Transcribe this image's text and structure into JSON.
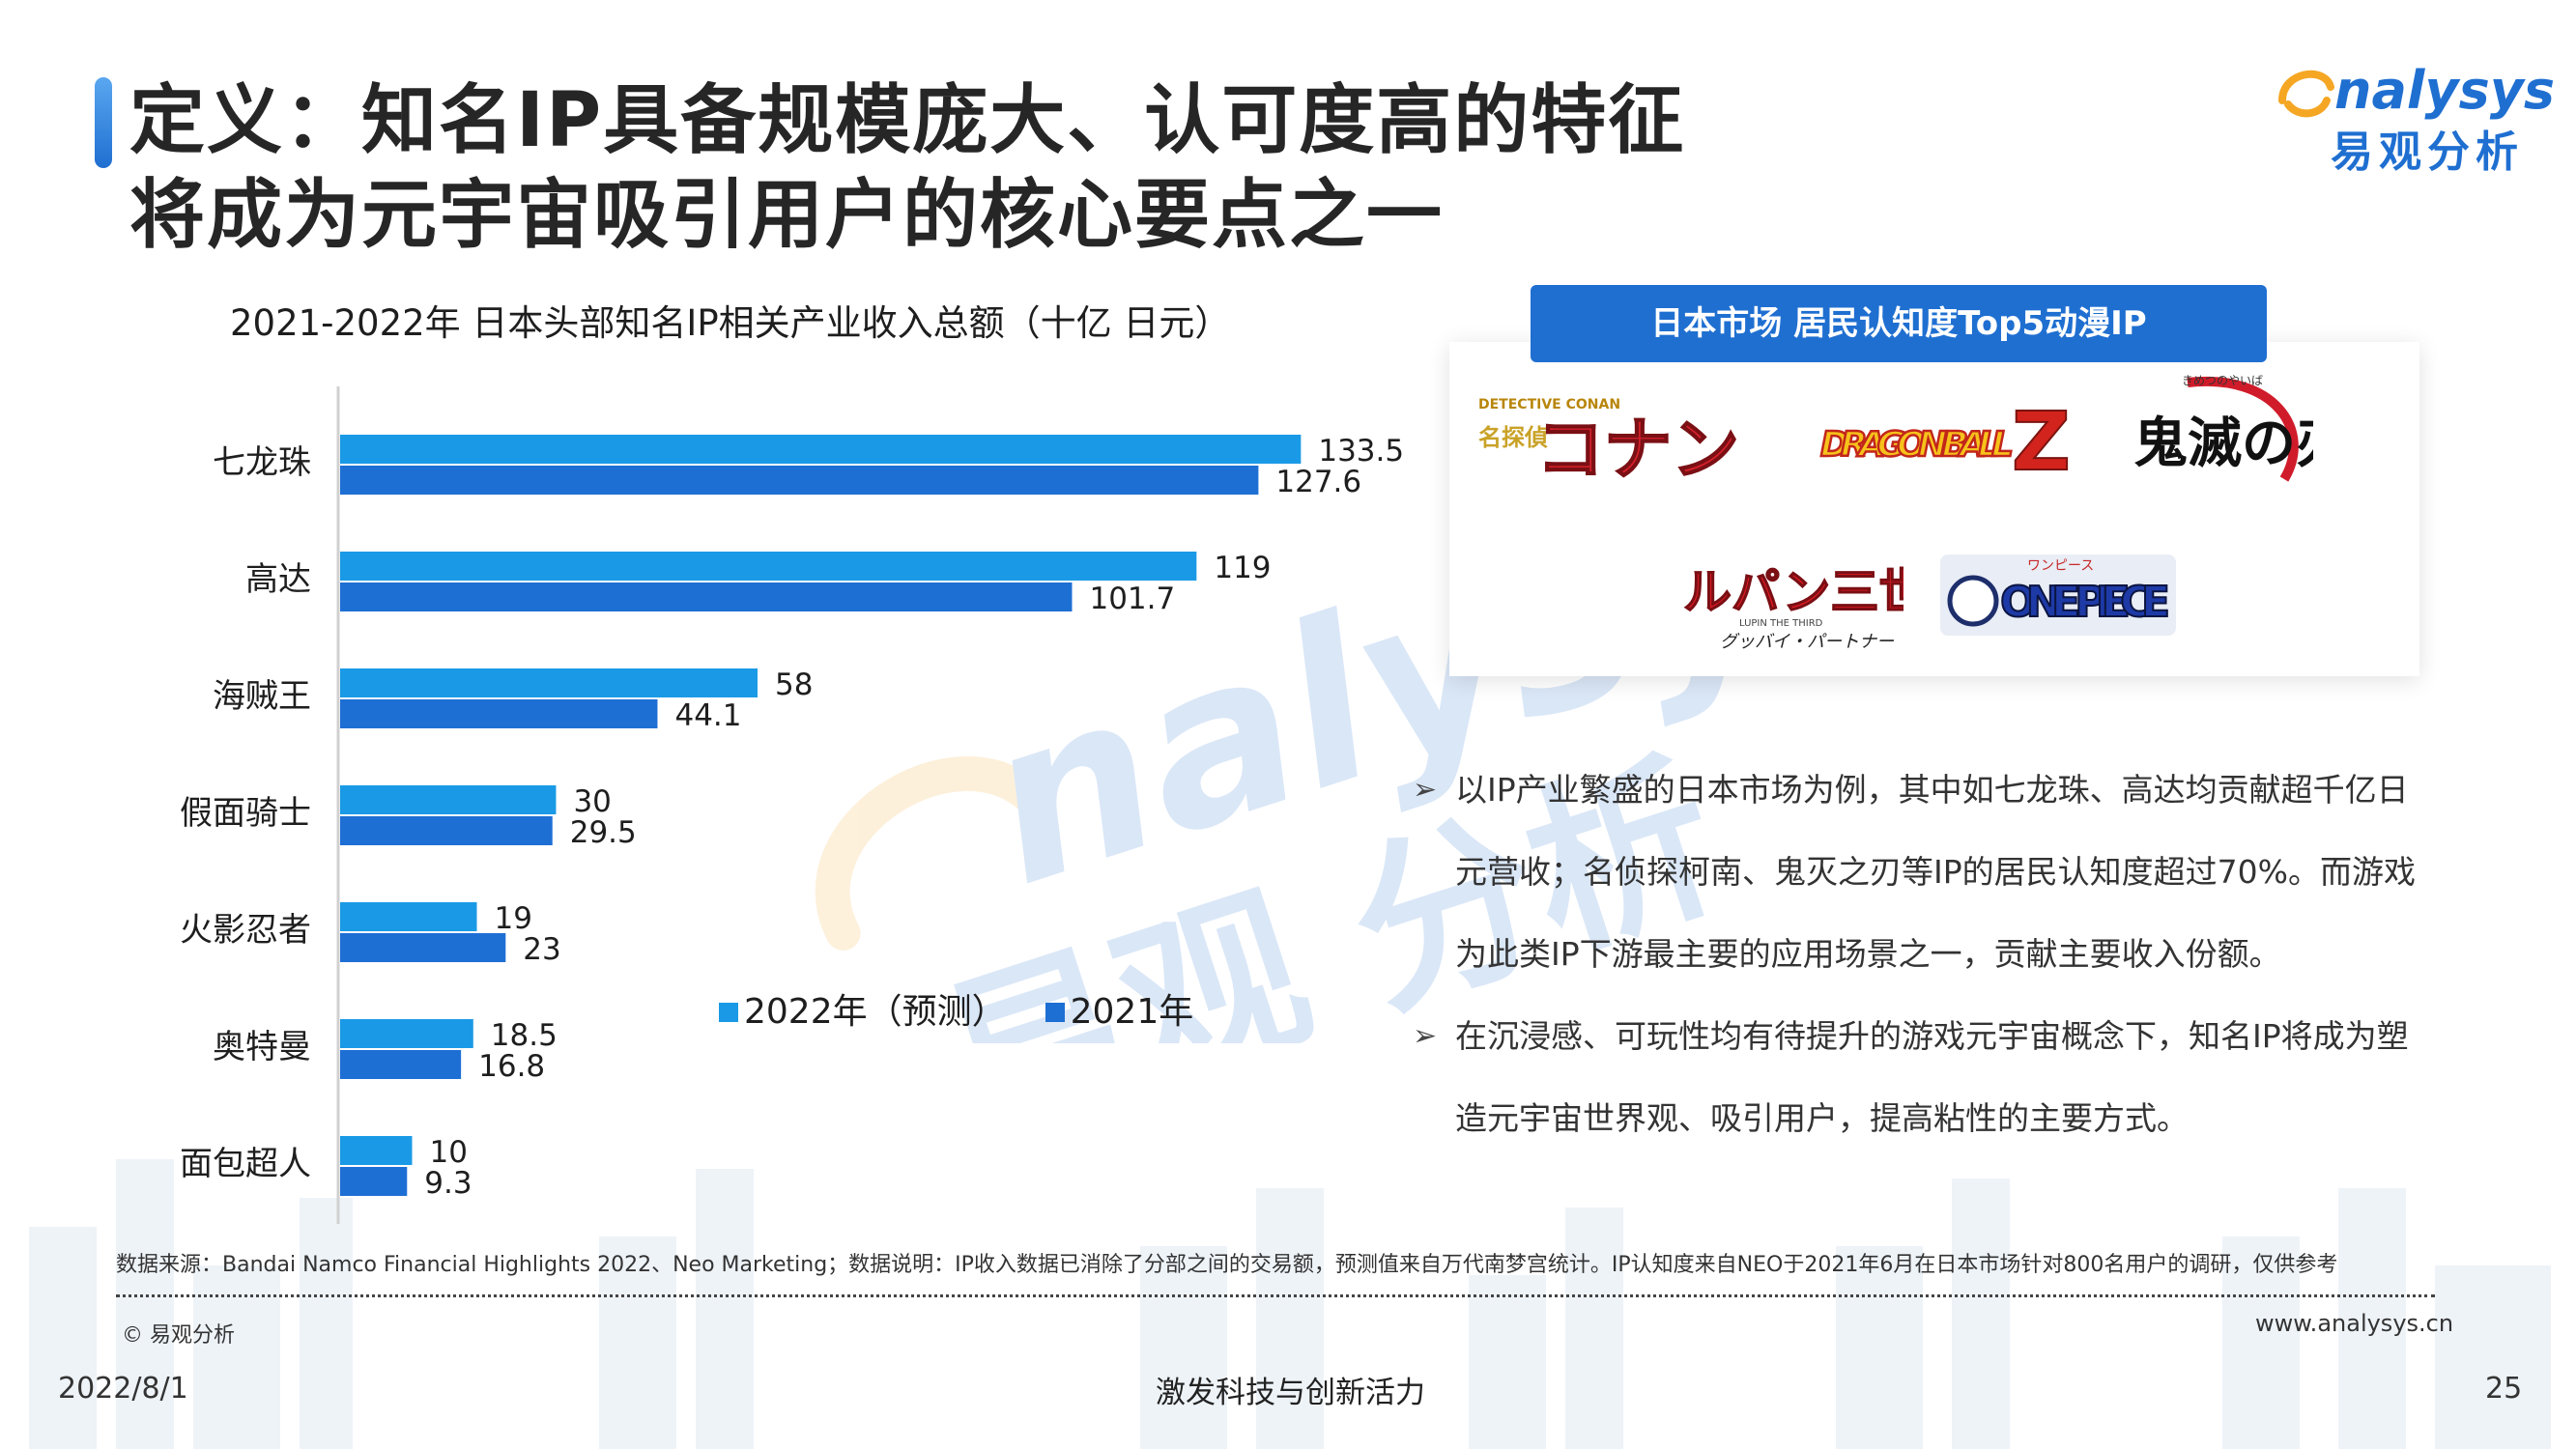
{
  "title": {
    "line1": "定义：知名IP具备规模庞大、认可度高的特征",
    "line2": "将成为元宇宙吸引用户的核心要点之一"
  },
  "brand": {
    "logo_word": "nalysys",
    "logo_cn": "易观分析",
    "color_primary": "#1f6fd1",
    "color_accent": "#f5a623",
    "watermark_word": "nalysys",
    "watermark_cn": "易观 分析"
  },
  "chart_data": {
    "type": "bar",
    "orientation": "horizontal",
    "title": "2021-2022年 日本头部知名IP相关产业收入总额（十亿 日元）",
    "categories": [
      "七龙珠",
      "高达",
      "海贼王",
      "假面骑士",
      "火影忍者",
      "奥特曼",
      "面包超人"
    ],
    "series": [
      {
        "name": "2022年（预测）",
        "color": "#1a9ae6",
        "values": [
          133.5,
          119,
          58,
          30,
          19,
          18.5,
          10
        ]
      },
      {
        "name": "2021年",
        "color": "#1e6fd4",
        "values": [
          127.6,
          101.7,
          44.1,
          29.5,
          23,
          16.8,
          9.3
        ]
      }
    ],
    "value_labels": [
      [
        "133.5",
        "119",
        "58",
        "30",
        "19",
        "18.5",
        "10"
      ],
      [
        "127.6",
        "101.7",
        "44.1",
        "29.5",
        "23",
        "16.8",
        "9.3"
      ]
    ],
    "xlim": [
      0,
      145
    ],
    "grid": false,
    "legend_position": "bottom-right"
  },
  "ip_panel": {
    "header": "日本市场 居民认知度Top5动漫IP",
    "logos": [
      {
        "name": "名探偵コナン",
        "main": "コナン",
        "sub": "名探偵",
        "top": "DETECTIVE CONAN"
      },
      {
        "name": "DRAGON BALL Z",
        "main": "DRAGON BALL",
        "tag": "Z"
      },
      {
        "name": "鬼滅の刃",
        "main": "鬼滅の刃",
        "sub": "きめつのやいば"
      },
      {
        "name": "ルパン三世",
        "main": "ルパン三世",
        "sub": "LUPIN THE THIRD",
        "caption": "グッバイ・パートナー"
      },
      {
        "name": "ONE PIECE",
        "main": "ONE PIECE",
        "sub": "ワンピース"
      }
    ]
  },
  "bullets": [
    "以IP产业繁盛的日本市场为例，其中如七龙珠、高达均贡献超千亿日元营收；名侦探柯南、鬼灭之刃等IP的居民认知度超过70%。而游戏为此类IP下游最主要的应用场景之一，贡献主要收入份额。",
    "在沉浸感、可玩性均有待提升的游戏元宇宙概念下，知名IP将成为塑造元宇宙世界观、吸引用户，提高粘性的主要方式。"
  ],
  "bullet_marker": "➢",
  "footer": {
    "source": "数据来源：Bandai Namco Financial Highlights 2022、Neo Marketing；数据说明：IP收入数据已消除了分部之间的交易额，预测值来自万代南梦宫统计。IP认知度来自NEO于2021年6月在日本市场针对800名用户的调研，仅供参考",
    "copyright": "© 易观分析",
    "url": "www.analysys.cn",
    "date": "2022/8/1",
    "slogan": "激发科技与创新活力",
    "page": "25"
  }
}
